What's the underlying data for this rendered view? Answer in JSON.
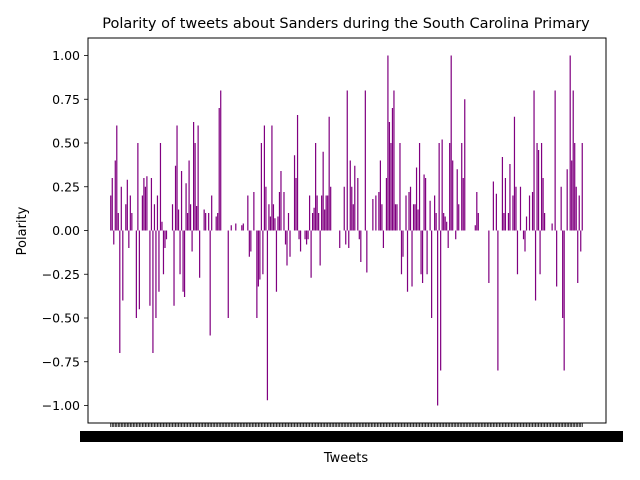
{
  "chart_data": {
    "type": "bar",
    "title": "Polarity of tweets about Sanders during the South Carolina Primary",
    "xlabel": "Tweets",
    "ylabel": "Polarity",
    "ylim": [
      -1.1,
      1.1
    ],
    "yticks": [
      1.0,
      0.75,
      0.5,
      0.25,
      0.0,
      -0.25,
      -0.5,
      -0.75,
      -1.0
    ],
    "ytick_labels": [
      "1.00",
      "0.75",
      "0.50",
      "0.25",
      "0.00",
      "−0.25",
      "−0.50",
      "−0.75",
      "−1.00"
    ],
    "grid": false,
    "legend": "none",
    "bar_color": "#800080",
    "values": [
      0.2,
      0.3,
      -0.08,
      0.4,
      0.6,
      0.1,
      -0.7,
      0.25,
      -0.4,
      0.0,
      0.15,
      0.29,
      -0.1,
      0.2,
      0.1,
      0.0,
      0.0,
      -0.5,
      0.5,
      -0.45,
      0.0,
      0.2,
      0.3,
      0.25,
      0.31,
      0.0,
      -0.43,
      0.3,
      -0.7,
      0.15,
      -0.5,
      0.2,
      -0.35,
      0.5,
      0.05,
      -0.25,
      -0.1,
      -0.05,
      0.0,
      0.0,
      0.0,
      0.15,
      -0.43,
      0.37,
      0.6,
      0.12,
      -0.25,
      0.34,
      -0.35,
      -0.38,
      0.27,
      0.1,
      0.4,
      0.15,
      -0.12,
      0.62,
      0.5,
      0.14,
      0.6,
      -0.27,
      0.0,
      0.0,
      0.12,
      0.1,
      0.0,
      0.1,
      -0.6,
      0.2,
      0.0,
      0.0,
      0.08,
      0.1,
      0.7,
      0.8,
      0.0,
      0.0,
      0.0,
      0.0,
      -0.5,
      0.0,
      0.03,
      0.0,
      0.0,
      0.04,
      0.0,
      0.0,
      0.0,
      0.03,
      0.04,
      0.0,
      0.0,
      0.2,
      -0.15,
      -0.12,
      0.0,
      0.22,
      0.0,
      -0.5,
      -0.32,
      -0.28,
      0.5,
      -0.25,
      0.6,
      0.25,
      -0.97,
      0.15,
      0.08,
      0.6,
      0.15,
      0.07,
      -0.35,
      0.08,
      0.22,
      0.34,
      0.0,
      0.22,
      -0.08,
      -0.2,
      0.1,
      -0.15,
      0.0,
      0.0,
      0.43,
      0.3,
      0.66,
      -0.05,
      -0.12,
      0.0,
      0.0,
      -0.05,
      -0.08,
      -0.05,
      0.2,
      -0.27,
      0.1,
      0.13,
      0.5,
      0.2,
      0.1,
      -0.2,
      0.2,
      0.45,
      0.12,
      0.2,
      0.2,
      0.65,
      0.25,
      0.0,
      0.0,
      0.0,
      0.0,
      0.0,
      -0.1,
      0.0,
      0.0,
      0.25,
      -0.08,
      0.8,
      -0.1,
      0.4,
      0.25,
      0.15,
      0.37,
      0.0,
      0.3,
      -0.05,
      -0.18,
      0.0,
      0.0,
      0.8,
      -0.24,
      0.0,
      0.0,
      0.0,
      0.18,
      0.0,
      0.2,
      0.0,
      0.22,
      0.4,
      0.15,
      -0.1,
      0.0,
      0.3,
      1.0,
      0.62,
      0.5,
      0.7,
      0.8,
      0.15,
      0.15,
      0.0,
      0.5,
      -0.25,
      -0.15,
      0.0,
      0.2,
      -0.35,
      0.22,
      0.25,
      -0.32,
      0.15,
      0.15,
      0.36,
      0.12,
      0.5,
      -0.25,
      -0.3,
      0.32,
      0.3,
      -0.25,
      0.0,
      0.17,
      -0.5,
      0.0,
      0.2,
      0.1,
      -1.0,
      0.5,
      -0.8,
      0.52,
      0.1,
      0.08,
      0.05,
      -0.1,
      0.5,
      1.0,
      0.4,
      0.0,
      -0.05,
      0.35,
      0.15,
      0.0,
      0.5,
      0.3,
      0.75,
      0.0,
      0.0,
      0.0,
      0.0,
      0.0,
      0.0,
      0.03,
      0.22,
      0.1,
      0.0,
      0.0,
      0.0,
      0.0,
      0.0,
      0.0,
      -0.3,
      0.0,
      0.0,
      0.28,
      0.0,
      0.21,
      -0.8,
      0.0,
      0.0,
      0.42,
      0.1,
      0.3,
      0.0,
      0.1,
      0.38,
      0.0,
      0.2,
      0.65,
      0.25,
      -0.25,
      0.0,
      0.25,
      0.0,
      -0.05,
      -0.12,
      0.08,
      0.0,
      0.2,
      0.0,
      0.22,
      0.8,
      -0.4,
      0.5,
      0.46,
      -0.25,
      0.5,
      0.3,
      0.1,
      0.0,
      0.0,
      0.0,
      0.0,
      0.04,
      0.0,
      0.8,
      -0.32,
      0.0,
      0.0,
      0.25,
      -0.5,
      -0.8,
      0.0,
      0.35,
      0.0,
      1.0,
      0.4,
      0.8,
      0.5,
      0.25,
      -0.3,
      0.2,
      -0.12,
      0.5
    ]
  }
}
